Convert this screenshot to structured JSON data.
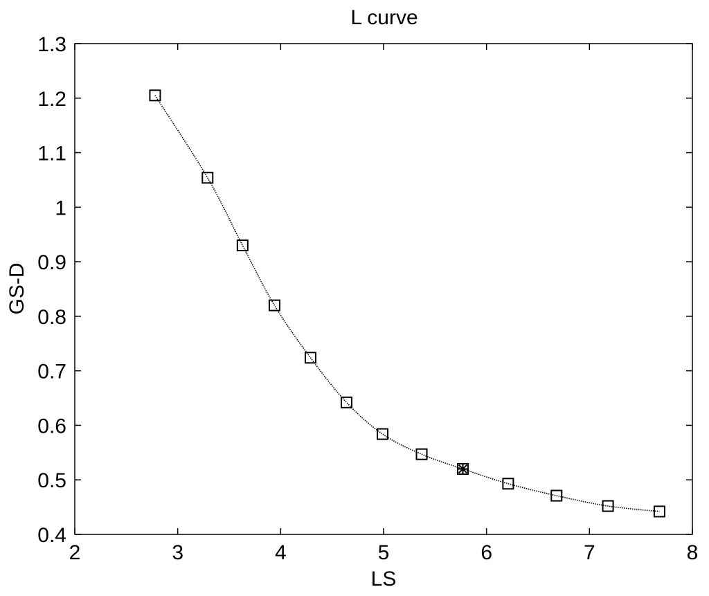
{
  "chart_data": {
    "type": "line",
    "title": "L curve",
    "xlabel": "LS",
    "ylabel": "GS-D",
    "xlim": [
      2,
      8
    ],
    "ylim": [
      0.4,
      1.3
    ],
    "xticks": [
      "2",
      "3",
      "4",
      "5",
      "6",
      "7",
      "8"
    ],
    "yticks": [
      "0.4",
      "0.5",
      "0.6",
      "0.7",
      "0.8",
      "0.9",
      "1",
      "1.1",
      "1.2",
      "1.3"
    ],
    "grid": false,
    "legend": "none",
    "series": [
      {
        "marker": "square",
        "line_style": "dotted",
        "color": "#000000",
        "x": [
          2.78,
          3.29,
          3.63,
          3.94,
          4.29,
          4.64,
          4.99,
          5.37,
          5.77,
          6.21,
          6.68,
          7.18,
          7.68
        ],
        "y": [
          1.205,
          1.054,
          0.93,
          0.82,
          0.724,
          0.642,
          0.584,
          0.547,
          0.52,
          0.493,
          0.471,
          0.452,
          0.442
        ]
      }
    ],
    "highlight": {
      "marker": "asterisk",
      "x": 5.77,
      "y": 0.52
    }
  }
}
